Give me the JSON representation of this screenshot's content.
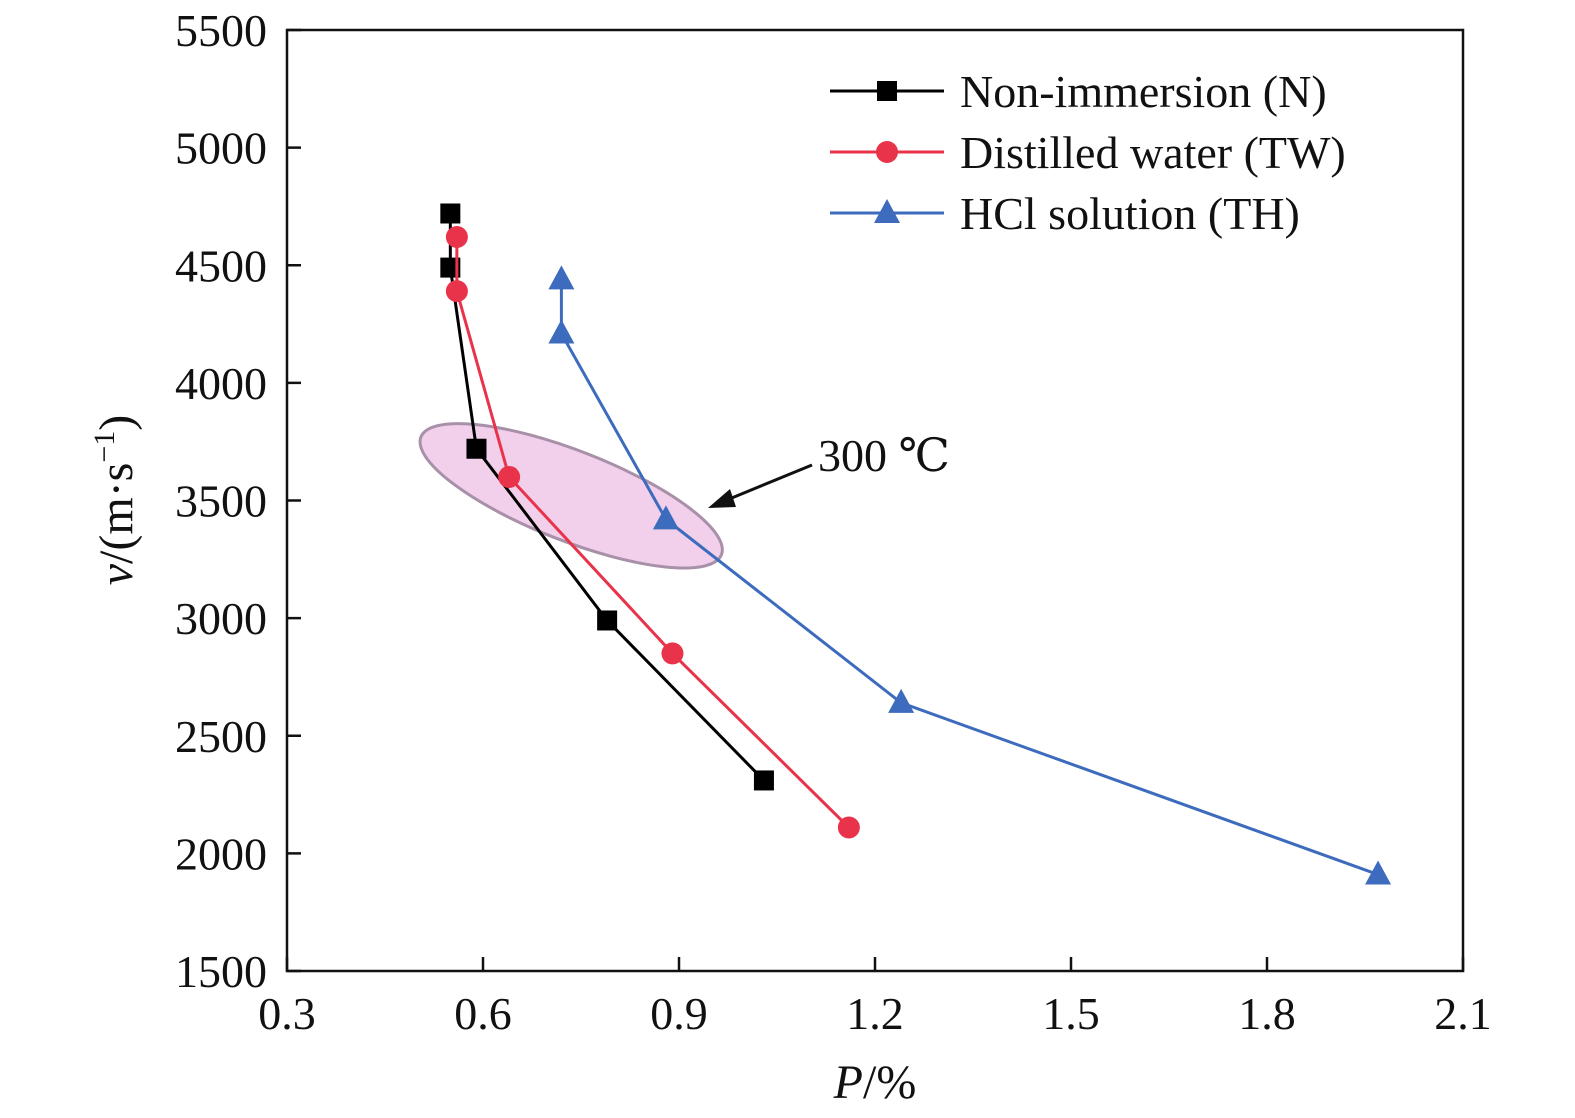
{
  "chart_data": {
    "type": "line",
    "xlabel": "P/%",
    "ylabel": "v/(m·s−1)",
    "xlabel_var": "P",
    "xlabel_unit": "/%",
    "ylabel_var": "v",
    "ylabel_unit": "/(m·s",
    "ylabel_sup": "−1",
    "ylabel_close": ")",
    "xlim": [
      0.3,
      2.1
    ],
    "ylim": [
      1500,
      5500
    ],
    "xticks": [
      "0.3",
      "0.6",
      "0.9",
      "1.2",
      "1.5",
      "1.8",
      "2.1"
    ],
    "yticks": [
      "1500",
      "2000",
      "2500",
      "3000",
      "3500",
      "4000",
      "4500",
      "5000",
      "5500"
    ],
    "grid": false,
    "legend_position": "top-right",
    "series": [
      {
        "name": "Non-immersion (N)",
        "color": "#000000",
        "marker": "square",
        "x": [
          0.55,
          0.55,
          0.59,
          0.79,
          1.03
        ],
        "y": [
          4720,
          4490,
          3720,
          2990,
          2310
        ]
      },
      {
        "name": "Distilled water (TW)",
        "color": "#e8334a",
        "marker": "circle",
        "x": [
          0.56,
          0.56,
          0.64,
          0.89,
          1.16
        ],
        "y": [
          4620,
          4390,
          3600,
          2850,
          2110
        ]
      },
      {
        "name": "HCl solution (TH)",
        "color": "#3d6bbd",
        "marker": "triangle",
        "x": [
          0.72,
          0.72,
          0.88,
          1.24,
          1.97
        ],
        "y": [
          4440,
          4210,
          3420,
          2640,
          1910
        ]
      }
    ],
    "annotations": [
      {
        "text": "300 ℃",
        "highlight_color": "#f0c8e8",
        "highlight_stroke": "#a890a8"
      }
    ]
  }
}
